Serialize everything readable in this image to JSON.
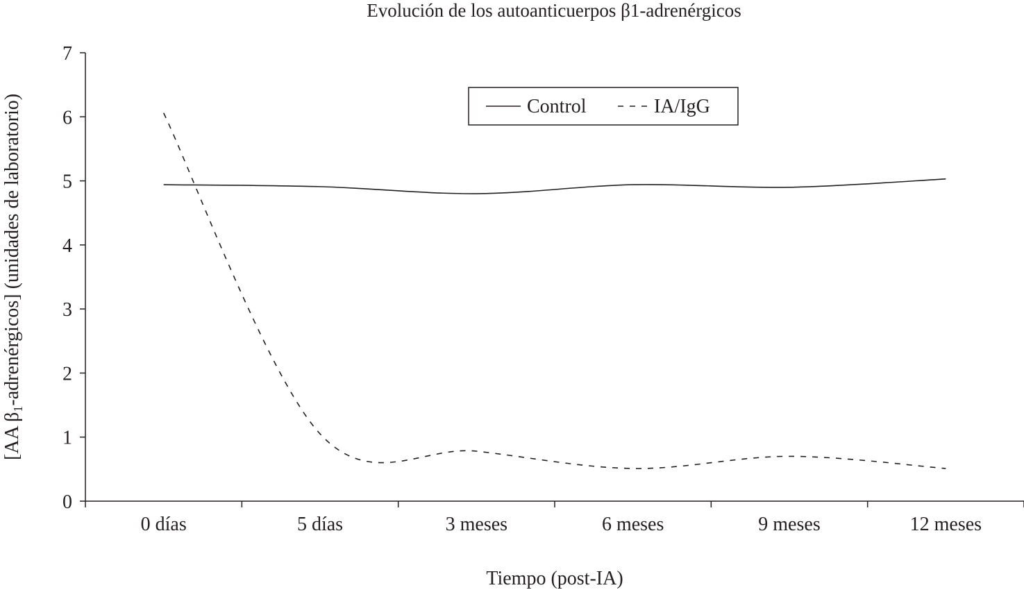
{
  "chart_data": {
    "type": "line",
    "title": "Evolución de los autoanticuerpos β1-adrenérgicos",
    "xlabel": "Tiempo (post-IA)",
    "ylabel_parts": [
      "[AA β",
      "1",
      "-adrenérgicos] (unidades de laboratorio)"
    ],
    "ylim": [
      0,
      7
    ],
    "yticks": [
      "0",
      "1",
      "2",
      "3",
      "4",
      "5",
      "6",
      "7"
    ],
    "categories": [
      "0 días",
      "5 días",
      "3 meses",
      "6 meses",
      "9 meses",
      "12 meses"
    ],
    "grid": false,
    "legend_position": "top-center",
    "series": [
      {
        "name": "Control",
        "style": "solid",
        "color": "#231f20",
        "values": [
          4.94,
          4.91,
          4.8,
          4.94,
          4.9,
          5.03
        ]
      },
      {
        "name": "IA/IgG",
        "style": "dashed",
        "color": "#231f20",
        "values": [
          6.06,
          1.05,
          0.78,
          0.51,
          0.7,
          0.51
        ]
      }
    ]
  }
}
